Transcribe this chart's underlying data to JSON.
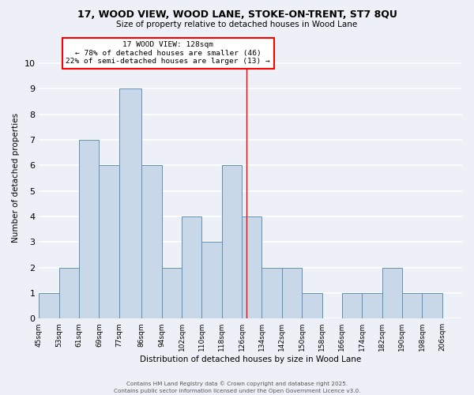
{
  "title_line1": "17, WOOD VIEW, WOOD LANE, STOKE-ON-TRENT, ST7 8QU",
  "title_line2": "Size of property relative to detached houses in Wood Lane",
  "xlabel": "Distribution of detached houses by size in Wood Lane",
  "ylabel": "Number of detached properties",
  "bar_lefts": [
    45,
    53,
    61,
    69,
    77,
    86,
    94,
    102,
    110,
    118,
    126,
    134,
    142,
    150,
    158,
    166,
    174,
    182,
    190,
    198
  ],
  "bar_widths": [
    8,
    8,
    8,
    8,
    9,
    8,
    8,
    8,
    8,
    8,
    8,
    8,
    8,
    8,
    8,
    8,
    8,
    8,
    8,
    8
  ],
  "bar_heights": [
    1,
    2,
    7,
    6,
    9,
    6,
    2,
    4,
    3,
    6,
    4,
    2,
    2,
    1,
    0,
    1,
    1,
    2,
    1,
    1
  ],
  "bar_color": "#c8d8e8",
  "bar_edgecolor": "#6090b8",
  "property_size": 128,
  "annotation_title": "17 WOOD VIEW: 128sqm",
  "annotation_line1": "← 78% of detached houses are smaller (46)",
  "annotation_line2": "22% of semi-detached houses are larger (13) →",
  "annotation_box_color": "white",
  "annotation_box_edgecolor": "red",
  "vline_color": "red",
  "xlim": [
    45,
    214
  ],
  "ylim": [
    0,
    11
  ],
  "yticks": [
    0,
    1,
    2,
    3,
    4,
    5,
    6,
    7,
    8,
    9,
    10
  ],
  "xtick_positions": [
    45,
    53,
    61,
    69,
    77,
    86,
    94,
    102,
    110,
    118,
    126,
    134,
    142,
    150,
    158,
    166,
    174,
    182,
    190,
    198,
    206
  ],
  "xtick_labels": [
    "45sqm",
    "53sqm",
    "61sqm",
    "69sqm",
    "77sqm",
    "86sqm",
    "94sqm",
    "102sqm",
    "110sqm",
    "118sqm",
    "126sqm",
    "134sqm",
    "142sqm",
    "150sqm",
    "158sqm",
    "166sqm",
    "174sqm",
    "182sqm",
    "190sqm",
    "198sqm",
    "206sqm"
  ],
  "bg_color": "#edf1f7",
  "grid_color": "white",
  "footer_line1": "Contains HM Land Registry data © Crown copyright and database right 2025.",
  "footer_line2": "Contains public sector information licensed under the Open Government Licence v3.0."
}
